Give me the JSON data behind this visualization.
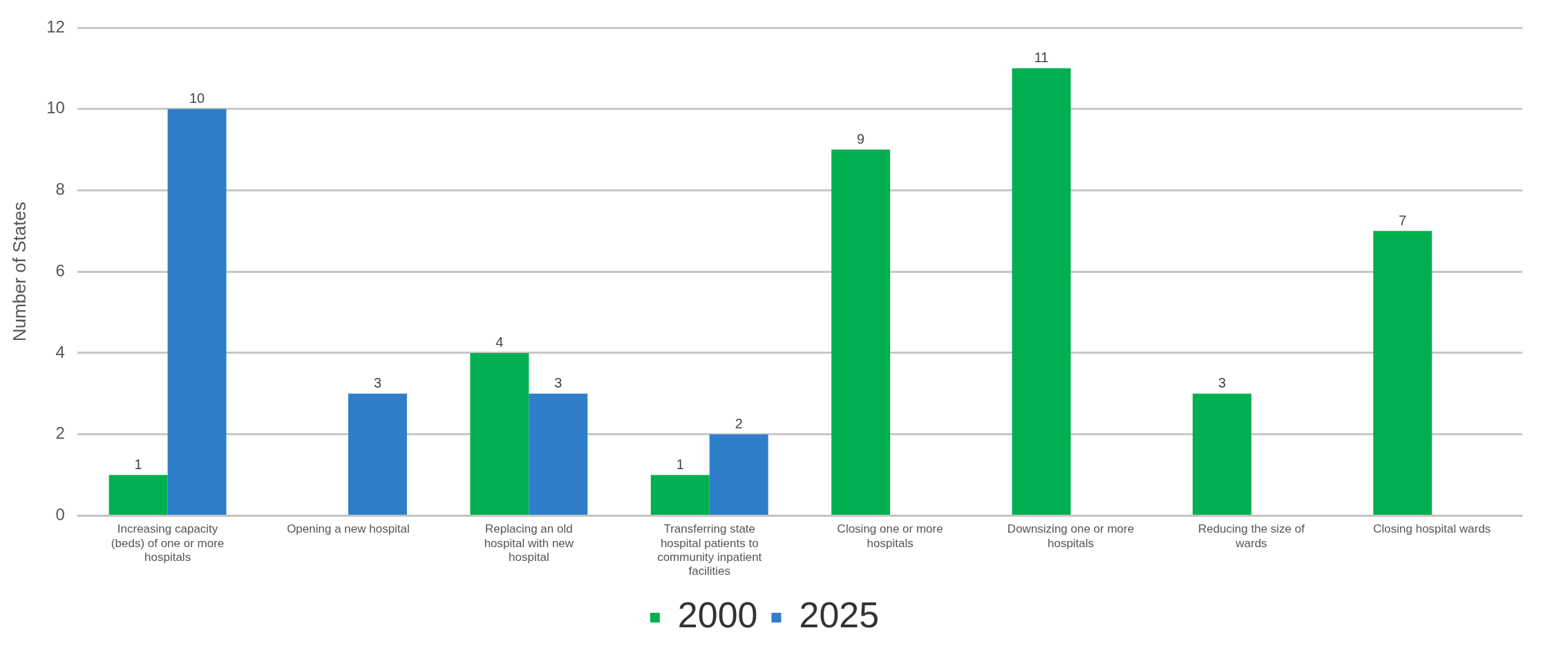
{
  "chart_data": {
    "type": "bar",
    "ylabel": "Number of States",
    "categories": [
      "Increasing capacity (beds) of one or more hospitals",
      "Opening a new hospital",
      "Replacing an old hospital with new hospital",
      "Transferring state hospital patients to community inpatient facilities",
      "Closing one or more hospitals",
      "Downsizing one or more hospitals",
      "Reducing the size of wards",
      "Closing hospital wards"
    ],
    "series": [
      {
        "name": "2000",
        "color": "#00b050",
        "values": [
          1,
          null,
          4,
          1,
          9,
          11,
          3,
          7
        ]
      },
      {
        "name": "2025",
        "color": "#2e7ec9",
        "values": [
          10,
          3,
          3,
          2,
          null,
          null,
          null,
          null
        ]
      }
    ],
    "ylim": [
      0,
      12
    ],
    "yticks": [
      0,
      2,
      4,
      6,
      8,
      10,
      12
    ],
    "grid": "y",
    "legend": "bottom",
    "data_labels": true
  }
}
